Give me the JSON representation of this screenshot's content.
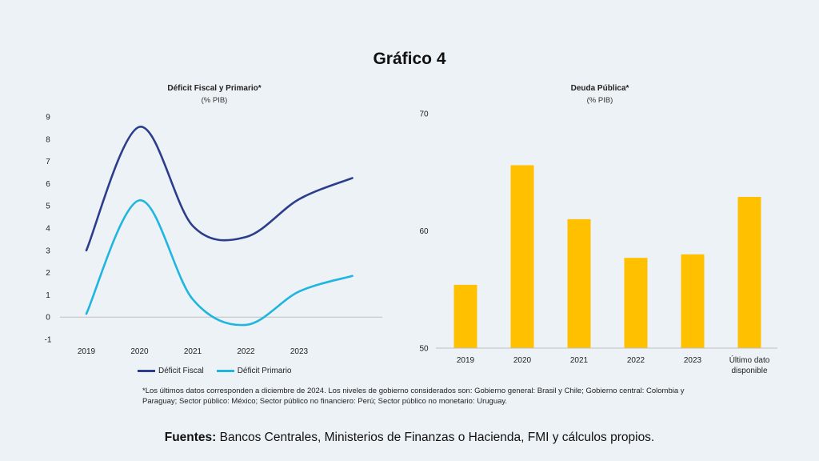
{
  "page_title": "Gráfico 4",
  "footnote": "*Los últimos datos corresponden a diciembre de 2024. Los niveles de gobierno considerados son: Gobierno general: Brasil y Chile; Gobierno central: Colombia y Paraguay; Sector público: México; Sector público no financiero: Perú; Sector público no monetario: Uruguay.",
  "sources": {
    "label": "Fuentes:",
    "text": " Bancos Centrales, Ministerios de Finanzas o Hacienda, FMI y cálculos propios."
  },
  "colors": {
    "fiscal": "#2b3d8b",
    "primario": "#1fb5e0",
    "bar": "#ffc000",
    "axis": "#bfbfbf"
  },
  "chart_data": [
    {
      "type": "line",
      "title": "Déficit Fiscal y Primario*",
      "subtitle": "(% PIB)",
      "x_ticks": [
        "2019",
        "2020",
        "2021",
        "2022",
        "2023"
      ],
      "y_ticks": [
        "9",
        "8",
        "7",
        "6",
        "5",
        "4",
        "3",
        "2",
        "1",
        "0",
        "-1"
      ],
      "ylim": [
        -1,
        9
      ],
      "series": [
        {
          "name": "Déficit Fiscal",
          "x": [
            "2019",
            "2020",
            "2021",
            "2022",
            "2023",
            "2024"
          ],
          "values": [
            3.0,
            8.55,
            4.1,
            3.6,
            5.3,
            6.25
          ]
        },
        {
          "name": "Déficit Primario",
          "x": [
            "2019",
            "2020",
            "2021",
            "2022",
            "2023",
            "2024"
          ],
          "values": [
            0.15,
            5.25,
            0.8,
            -0.35,
            1.15,
            1.85
          ]
        }
      ],
      "legend": "bottom"
    },
    {
      "type": "bar",
      "title": "Deuda Pública*",
      "subtitle": "(% PIB)",
      "categories": [
        "2019",
        "2020",
        "2021",
        "2022",
        "2023",
        "Último dato disponible"
      ],
      "category_lines": [
        [
          "2019"
        ],
        [
          "2020"
        ],
        [
          "2021"
        ],
        [
          "2022"
        ],
        [
          "2023"
        ],
        [
          "Último dato",
          "disponible"
        ]
      ],
      "values": [
        55.4,
        65.6,
        61.0,
        57.7,
        58.0,
        62.9
      ],
      "y_ticks": [
        "70",
        "60",
        "50"
      ],
      "ylim": [
        50,
        70
      ]
    }
  ]
}
